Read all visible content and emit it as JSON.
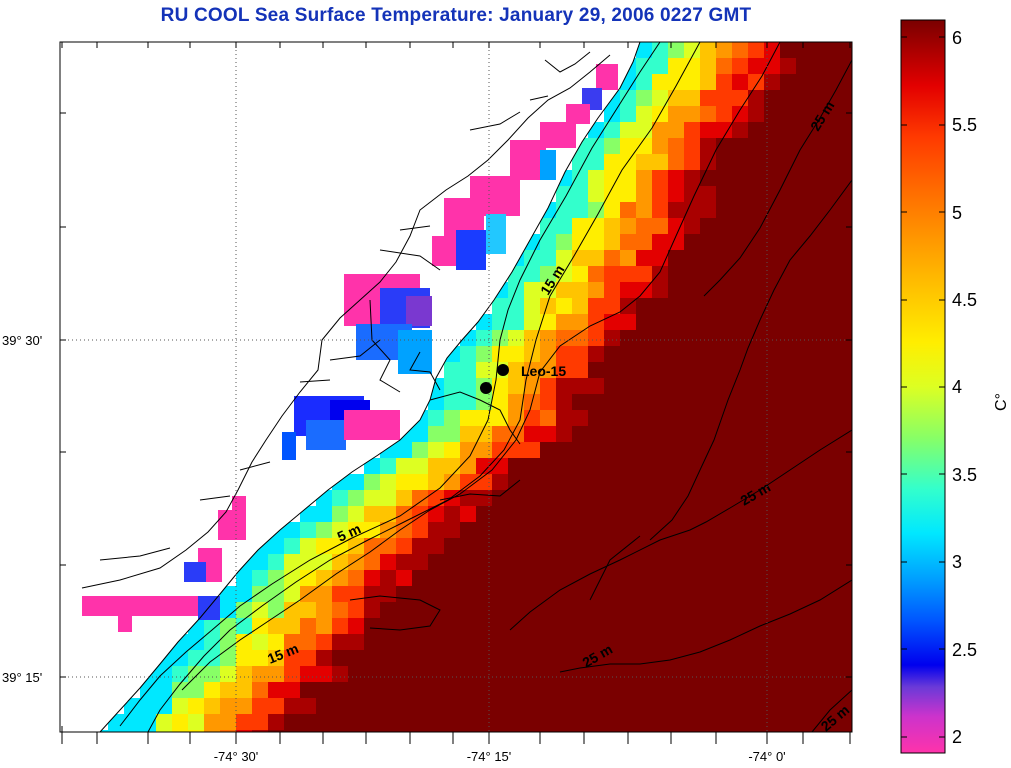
{
  "title": "RU COOL  Sea Surface Temperature:  January 29, 2006 0227 GMT",
  "axes": {
    "x_ticks": [
      "-74° 30'",
      "-74° 15'",
      "-74° 0'"
    ],
    "y_ticks": [
      "39° 30'",
      "39° 15'"
    ]
  },
  "station": {
    "label": "Leo-15"
  },
  "contours": {
    "c5": "5 m",
    "c15a": "15 m",
    "c15b": "15 m",
    "c25a": "25 m",
    "c25b": "25 m",
    "c25c": "25 m",
    "c25d": "25 m"
  },
  "colorbar": {
    "unit": "C°",
    "ticks": [
      "6",
      "5.5",
      "5",
      "4.5",
      "4",
      "3.5",
      "3",
      "2.5",
      "2"
    ],
    "range": [
      1.95,
      6.1
    ],
    "colormap": [
      "#ff33aa",
      "#cc33cc",
      "#6a3ad8",
      "#0000ee",
      "#0055ff",
      "#00a2ff",
      "#00e8ff",
      "#33ffcc",
      "#88ff66",
      "#ddff22",
      "#ffee00",
      "#ffc400",
      "#ff9800",
      "#ff6a00",
      "#ff3a00",
      "#e30000",
      "#a90000",
      "#7a0000"
    ]
  },
  "colors": {
    "title": "#1433b8",
    "land": "#ffffff",
    "coastline": "#000000",
    "grid": "#555555"
  }
}
